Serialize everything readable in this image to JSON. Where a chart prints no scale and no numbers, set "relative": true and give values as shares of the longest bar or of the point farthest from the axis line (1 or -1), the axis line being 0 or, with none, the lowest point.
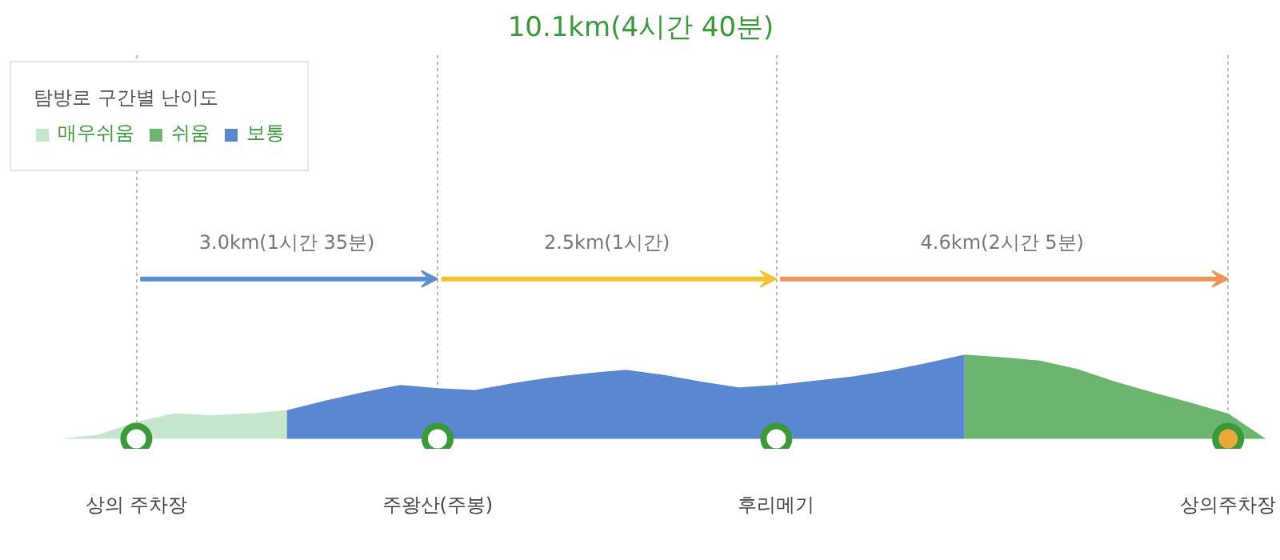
{
  "chart_data": {
    "type": "area",
    "title": "10.1km(4시간 40분)",
    "legend_title": "탐방로 구간별 난이도",
    "relative": true,
    "legend": "top left",
    "grid": "x",
    "categories": [
      null,
      null,
      "상의 주차장",
      null,
      null,
      null,
      null,
      null,
      null,
      null,
      "주왕산(주봉)",
      null,
      null,
      null,
      null,
      null,
      null,
      null,
      null,
      "후리메기",
      null,
      null,
      null,
      null,
      null,
      null,
      null,
      null,
      null,
      null,
      null,
      "상의주차장",
      null
    ],
    "series": [
      {
        "name": "매우쉬움",
        "color": "#c5e6cc",
        "values": [
          0,
          0.05,
          0.2,
          0.3,
          0.28,
          0.3,
          0.34,
          null,
          null,
          null,
          null,
          null,
          null,
          null,
          null,
          null,
          null,
          null,
          null,
          null,
          null,
          null,
          null,
          null,
          null,
          null,
          null,
          null,
          null,
          null,
          null,
          null,
          null
        ]
      },
      {
        "name": "쉬움",
        "color": "#6bb56f",
        "values": [
          null,
          null,
          null,
          null,
          null,
          null,
          null,
          null,
          null,
          null,
          null,
          null,
          null,
          null,
          null,
          null,
          null,
          null,
          null,
          null,
          null,
          null,
          null,
          null,
          1.0,
          0.97,
          0.93,
          0.83,
          0.68,
          0.55,
          0.43,
          0.3,
          0
        ]
      },
      {
        "name": "보통",
        "color": "#5b87d0",
        "values": [
          null,
          null,
          null,
          null,
          null,
          null,
          0.34,
          0.45,
          0.55,
          0.64,
          0.6,
          0.58,
          0.66,
          0.73,
          0.78,
          0.82,
          0.76,
          0.68,
          0.61,
          0.64,
          0.69,
          0.74,
          0.81,
          0.9,
          1.0,
          null,
          null,
          null,
          null,
          null,
          null,
          null,
          null
        ]
      },
      {
        "type": "scatter",
        "color": "#3a9a3a",
        "colors": [
          null,
          null,
          "#ffffff",
          null,
          null,
          null,
          null,
          null,
          null,
          null,
          "#ffffff",
          null,
          null,
          null,
          null,
          null,
          null,
          null,
          null,
          "#ffffff",
          null,
          null,
          null,
          null,
          null,
          null,
          null,
          null,
          null,
          null,
          null,
          "#e8a93a",
          null
        ],
        "values": [
          null,
          null,
          0,
          null,
          null,
          null,
          null,
          null,
          null,
          null,
          0,
          null,
          null,
          null,
          null,
          null,
          null,
          null,
          null,
          0,
          null,
          null,
          null,
          null,
          null,
          null,
          null,
          null,
          null,
          null,
          null,
          0,
          null
        ]
      }
    ],
    "annotations": [
      "3.0km(1시간 35분)",
      "2.5km(1시간)",
      "4.6km(2시간 5분)"
    ]
  }
}
